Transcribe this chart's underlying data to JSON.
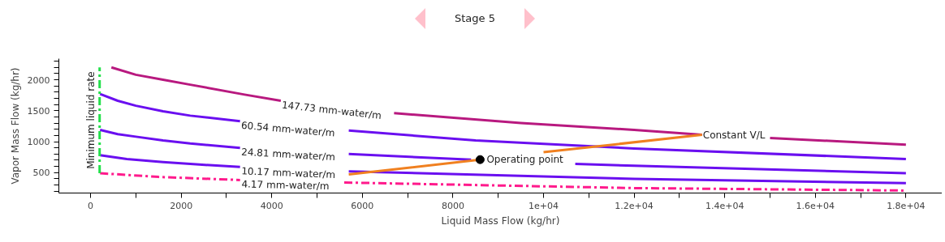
{
  "chart_data": {
    "type": "line",
    "title": "Stage 5",
    "xlabel": "Liquid Mass Flow (kg/hr)",
    "ylabel": "Vapor Mass Flow (kg/hr)",
    "xlim": [
      -700,
      18800
    ],
    "ylim": [
      170,
      2340
    ],
    "xticks": [
      0,
      {
        "value": 1000,
        "label": null
      },
      2000,
      {
        "value": 3000,
        "label": null
      },
      4000,
      {
        "value": 5000,
        "label": null
      },
      6000,
      {
        "value": 7000,
        "label": null
      },
      8000,
      {
        "value": 9000,
        "label": null
      },
      {
        "value": 10000,
        "label": "1e+04"
      },
      {
        "value": 11000,
        "label": null
      },
      {
        "value": 12000,
        "label": "1.2e+04"
      },
      {
        "value": 13000,
        "label": null
      },
      {
        "value": 14000,
        "label": "1.4e+04"
      },
      {
        "value": 15000,
        "label": null
      },
      {
        "value": 16000,
        "label": "1.6e+04"
      },
      {
        "value": 17000,
        "label": null
      },
      {
        "value": 18000,
        "label": "1.8e+04"
      }
    ],
    "yticks": [
      {
        "value": 200,
        "label": null
      },
      {
        "value": 300,
        "label": null
      },
      {
        "value": 400,
        "label": null
      },
      500,
      {
        "value": 600,
        "label": null
      },
      {
        "value": 700,
        "label": null
      },
      {
        "value": 800,
        "label": null
      },
      {
        "value": 900,
        "label": null
      },
      1000,
      {
        "value": 1100,
        "label": null
      },
      {
        "value": 1200,
        "label": null
      },
      {
        "value": 1300,
        "label": null
      },
      {
        "value": 1400,
        "label": null
      },
      1500,
      {
        "value": 1600,
        "label": null
      },
      {
        "value": 1700,
        "label": null
      },
      {
        "value": 1800,
        "label": null
      },
      {
        "value": 1900,
        "label": null
      },
      2000,
      {
        "value": 2100,
        "label": null
      },
      {
        "value": 2200,
        "label": null
      },
      {
        "value": 2300,
        "label": null
      }
    ],
    "grid": false,
    "series": [
      {
        "name": "147.73 mm-water/m",
        "color": "#b8197f",
        "line_style": "solid",
        "x": [
          460,
          1000,
          1600,
          2200,
          3400,
          4200,
          5400,
          6700,
          9500,
          12000,
          13500,
          14200,
          15000,
          18000
        ],
        "values": [
          2200,
          2080,
          2000,
          1920,
          1760,
          1660,
          null,
          1460,
          1300,
          1190,
          1110,
          null,
          1060,
          950
        ]
      },
      {
        "name": "60.54 mm-water/m",
        "color": "#6a0ff0",
        "line_style": "solid",
        "x": [
          210,
          600,
          1000,
          1600,
          2200,
          3300,
          4500,
          5700,
          8500,
          12000,
          18000
        ],
        "values": [
          1770,
          1660,
          1580,
          1490,
          1420,
          1330,
          null,
          1180,
          1020,
          890,
          720
        ]
      },
      {
        "name": "24.81 mm-water/m",
        "color": "#6a0ff0",
        "line_style": "solid",
        "x": [
          210,
          600,
          1000,
          1600,
          2200,
          3300,
          4500,
          5700,
          8400,
          9500,
          10700,
          12000,
          18000
        ],
        "values": [
          1190,
          1120,
          1080,
          1020,
          970,
          900,
          null,
          800,
          710,
          null,
          640,
          610,
          490
        ]
      },
      {
        "name": "10.17 mm-water/m",
        "color": "#6a0ff0",
        "line_style": "solid",
        "x": [
          210,
          800,
          1600,
          2400,
          3300,
          4500,
          5700,
          12000,
          18000
        ],
        "values": [
          780,
          720,
          670,
          630,
          590,
          null,
          520,
          400,
          330
        ]
      },
      {
        "name": "4.17 mm-water/m",
        "color": "#ff1a8c",
        "line_style": "dashdot",
        "x": [
          210,
          1500,
          3300,
          4500,
          5600,
          12000,
          18000
        ],
        "values": [
          490,
          430,
          380,
          null,
          340,
          250,
          210
        ]
      },
      {
        "name": "Minimum liquid rate",
        "color": "#22e04a",
        "line_style": "dashdot",
        "x": [
          200,
          200
        ],
        "values": [
          490,
          2200
        ]
      },
      {
        "name": "Constant V/L",
        "color": "#f08020",
        "line_style": "solid",
        "x": [
          5700,
          8600,
          9300,
          10000,
          13500
        ],
        "values": [
          470,
          710,
          null,
          830,
          1110
        ]
      },
      {
        "name": "Operating point",
        "type": "scatter",
        "marker": "circle",
        "color": "#000000",
        "x": [
          8600
        ],
        "values": [
          710
        ]
      }
    ]
  }
}
